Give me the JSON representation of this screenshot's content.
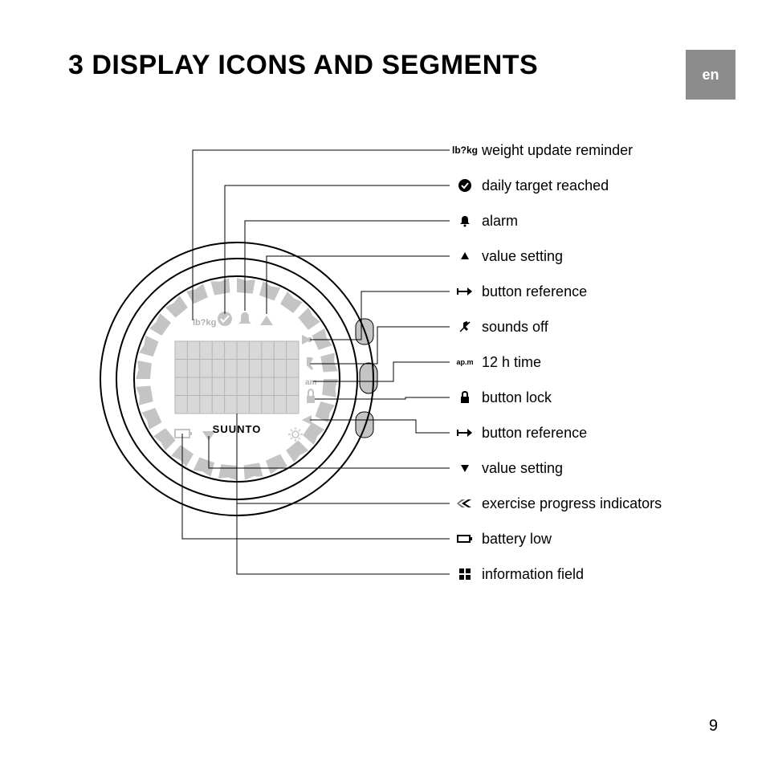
{
  "title": "3  DISPLAY ICONS AND SEGMENTS",
  "language_tab": "en",
  "page_number": "9",
  "brand": "SUUNTO",
  "colors": {
    "page_bg": "#ffffff",
    "text": "#000000",
    "tab_bg": "#8c8c8c",
    "tab_text": "#ffffff",
    "watch_outline": "#000000",
    "watch_grey": "#c4c4c4",
    "watch_light": "#d8d8d8",
    "leader": "#000000"
  },
  "legend": [
    {
      "icon": "weight",
      "label": "weight update reminder"
    },
    {
      "icon": "check",
      "label": "daily target reached"
    },
    {
      "icon": "bell",
      "label": "alarm"
    },
    {
      "icon": "tri-up",
      "label": "value setting"
    },
    {
      "icon": "arrow-right",
      "label": "button reference"
    },
    {
      "icon": "sound-off",
      "label": "sounds off"
    },
    {
      "icon": "ampm",
      "label": "12 h time"
    },
    {
      "icon": "lock",
      "label": "button lock"
    },
    {
      "icon": "arrow-right",
      "label": "button reference"
    },
    {
      "icon": "tri-down",
      "label": "value setting"
    },
    {
      "icon": "chevrons",
      "label": "exercise progress indicators"
    },
    {
      "icon": "battery",
      "label": "battery low"
    },
    {
      "icon": "grid",
      "label": "information field"
    }
  ],
  "watch": {
    "face_label_top": "lb?kg",
    "face_label_side": "am",
    "ring_seg_color": "#c4c4c4",
    "grid_color": "#c4c4c4"
  }
}
